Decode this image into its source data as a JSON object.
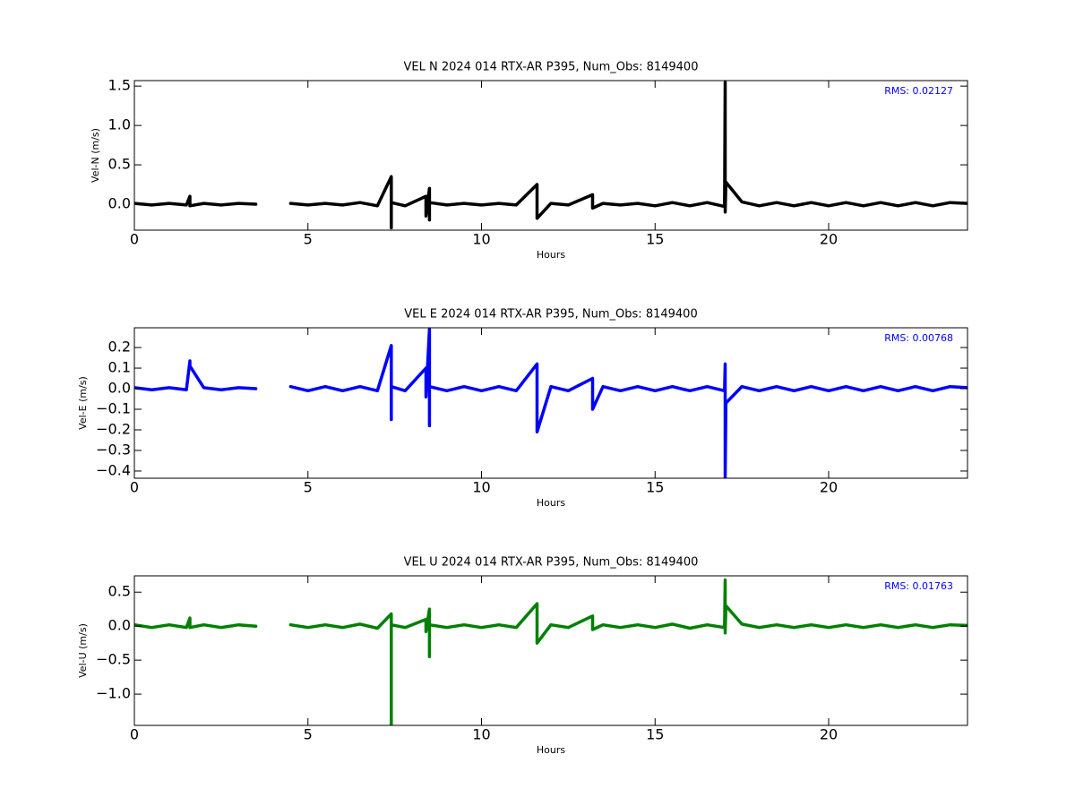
{
  "chart_data": [
    {
      "type": "line",
      "title": "VEL N 2024 014 RTX-AR  P395, Num_Obs: 8149400",
      "xlabel": "Hours",
      "ylabel": "Vel-N (m/s)",
      "annotation": "RMS:  0.02127",
      "color": "#000000",
      "xlim": [
        0,
        24
      ],
      "xticks": [
        0,
        5,
        10,
        15,
        20
      ],
      "ylim": [
        -0.33,
        1.57
      ],
      "yticks": [
        {
          "value": 0,
          "label": "0.0"
        },
        0.5,
        {
          "value": 1,
          "label": "1.0"
        },
        1.5
      ],
      "x": [
        0,
        0.5,
        1,
        1.5,
        1.6,
        1.6,
        2,
        2.5,
        3,
        3.5,
        3.6,
        4.5,
        5,
        5.5,
        6,
        6.5,
        7,
        7.4,
        7.4,
        7.4,
        7.8,
        8.4,
        8.4,
        8.5,
        8.5,
        8.5,
        9,
        9.5,
        10,
        10.5,
        11,
        11.6,
        11.6,
        12,
        12.5,
        13.2,
        13.2,
        13.5,
        14,
        14.5,
        15,
        15.5,
        16,
        16.5,
        17,
        17.02,
        17.02,
        17.04,
        17.5,
        18,
        18.5,
        19,
        19.5,
        20,
        20.5,
        21,
        21.5,
        22,
        22.5,
        23,
        23.5,
        24
      ],
      "values": [
        0.01,
        -0.01,
        0.01,
        -0.01,
        0.1,
        -0.02,
        0.01,
        -0.01,
        0.01,
        0,
        null,
        0.01,
        -0.01,
        0.01,
        -0.01,
        0.02,
        -0.02,
        0.35,
        -0.3,
        0.02,
        -0.02,
        0.1,
        -0.15,
        0.2,
        -0.2,
        0.02,
        -0.01,
        0.01,
        -0.01,
        0.01,
        -0.01,
        0.25,
        -0.18,
        0.01,
        -0.01,
        0.12,
        -0.05,
        0.01,
        -0.01,
        0.01,
        -0.02,
        0.02,
        -0.02,
        0.02,
        -0.03,
        1.55,
        -0.1,
        0.28,
        0.03,
        -0.02,
        0.02,
        -0.02,
        0.02,
        -0.02,
        0.02,
        -0.02,
        0.02,
        -0.02,
        0.02,
        -0.02,
        0.02,
        0.01
      ]
    },
    {
      "type": "line",
      "title": "VEL E 2024 014 RTX-AR  P395, Num_Obs: 8149400",
      "xlabel": "Hours",
      "ylabel": "Vel-E (m/s)",
      "annotation": "RMS:  0.00768",
      "color": "#0000ff",
      "xlim": [
        0,
        24
      ],
      "xticks": [
        0,
        5,
        10,
        15,
        20
      ],
      "ylim": [
        -0.435,
        0.296
      ],
      "yticks": [
        {
          "value": -0.4,
          "label": "−0.4"
        },
        {
          "value": -0.3,
          "label": "−0.3"
        },
        {
          "value": -0.2,
          "label": "−0.2"
        },
        {
          "value": -0.1,
          "label": "−0.1"
        },
        {
          "value": 0,
          "label": "0.0"
        },
        0.1,
        0.2
      ],
      "x": [
        0,
        0.5,
        1,
        1.5,
        1.6,
        1.6,
        2,
        2.5,
        3,
        3.5,
        3.6,
        4.5,
        5,
        5.5,
        6,
        6.5,
        7,
        7.4,
        7.4,
        7.4,
        7.8,
        8.4,
        8.4,
        8.5,
        8.5,
        8.5,
        9,
        9.5,
        10,
        10.5,
        11,
        11.6,
        11.6,
        12,
        12.5,
        13.2,
        13.2,
        13.5,
        14,
        14.5,
        15,
        15.5,
        16,
        16.5,
        17,
        17.02,
        17.02,
        17.04,
        17.5,
        18,
        18.5,
        19,
        19.5,
        20,
        20.5,
        21,
        21.5,
        22,
        22.5,
        23,
        23.5,
        24
      ],
      "values": [
        0.005,
        -0.005,
        0.005,
        -0.005,
        0.135,
        0.11,
        0.005,
        -0.005,
        0.005,
        0,
        null,
        0.01,
        -0.01,
        0.01,
        -0.01,
        0.01,
        -0.01,
        0.21,
        -0.15,
        0.01,
        -0.01,
        0.1,
        -0.04,
        0.29,
        -0.18,
        0.01,
        -0.01,
        0.01,
        -0.01,
        0.01,
        -0.01,
        0.12,
        -0.21,
        0.01,
        -0.01,
        0.05,
        -0.1,
        0.01,
        -0.01,
        0.01,
        -0.01,
        0.01,
        -0.01,
        0.01,
        -0.01,
        0.12,
        -0.43,
        -0.07,
        0.01,
        -0.01,
        0.01,
        -0.01,
        0.01,
        -0.01,
        0.01,
        -0.01,
        0.01,
        -0.01,
        0.01,
        -0.01,
        0.01,
        0.005
      ]
    },
    {
      "type": "line",
      "title": "VEL U 2024 014 RTX-AR  P395, Num_Obs: 8149400",
      "xlabel": "Hours",
      "ylabel": "Vel-U (m/s)",
      "annotation": "RMS:  0.01763",
      "color": "#008000",
      "xlim": [
        0,
        24
      ],
      "xticks": [
        0,
        5,
        10,
        15,
        20
      ],
      "ylim": [
        -1.46,
        0.74
      ],
      "yticks": [
        {
          "value": -1,
          "label": "−1.0"
        },
        {
          "value": -0.5,
          "label": "−0.5"
        },
        {
          "value": 0,
          "label": "0.0"
        },
        0.5
      ],
      "x": [
        0,
        0.5,
        1,
        1.5,
        1.6,
        1.6,
        2,
        2.5,
        3,
        3.5,
        3.6,
        4.5,
        5,
        5.5,
        6,
        6.5,
        7,
        7.4,
        7.4,
        7.4,
        7.8,
        8.4,
        8.4,
        8.5,
        8.5,
        8.5,
        9,
        9.5,
        10,
        10.5,
        11,
        11.6,
        11.6,
        12,
        12.5,
        13.2,
        13.2,
        13.5,
        14,
        14.5,
        15,
        15.5,
        16,
        16.5,
        17,
        17.02,
        17.02,
        17.04,
        17.5,
        18,
        18.5,
        19,
        19.5,
        20,
        20.5,
        21,
        21.5,
        22,
        22.5,
        23,
        23.5,
        24
      ],
      "values": [
        0.02,
        -0.02,
        0.02,
        -0.02,
        0.12,
        -0.02,
        0.02,
        -0.02,
        0.02,
        0,
        null,
        0.02,
        -0.02,
        0.02,
        -0.02,
        0.03,
        -0.03,
        0.18,
        -1.46,
        0.02,
        -0.02,
        0.1,
        -0.08,
        0.25,
        -0.45,
        0.02,
        -0.02,
        0.02,
        -0.02,
        0.02,
        -0.02,
        0.33,
        -0.25,
        0.02,
        -0.02,
        0.15,
        -0.05,
        0.02,
        -0.02,
        0.02,
        -0.02,
        0.03,
        -0.03,
        0.02,
        -0.02,
        0.68,
        -0.1,
        0.3,
        0.03,
        -0.02,
        0.02,
        -0.02,
        0.02,
        -0.02,
        0.02,
        -0.02,
        0.02,
        -0.02,
        0.02,
        -0.02,
        0.02,
        0.01
      ]
    }
  ]
}
